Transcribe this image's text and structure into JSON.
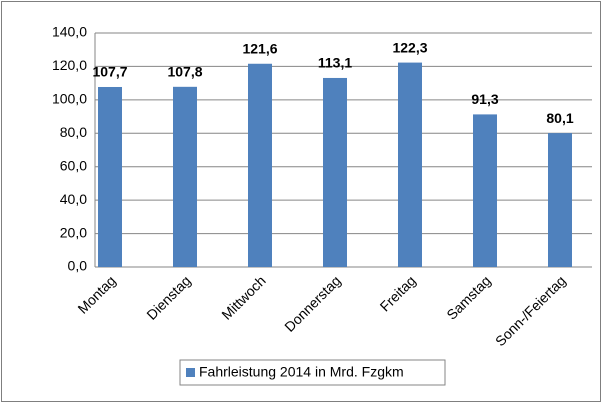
{
  "chart_data": {
    "type": "bar",
    "categories": [
      "Montag",
      "Dienstag",
      "Mittwoch",
      "Donnerstag",
      "Freitag",
      "Samstag",
      "Sonn-/Feiertag"
    ],
    "series": [
      {
        "name": "Fahrleistung 2014 in Mrd. Fzgkm",
        "color": "#4f81bd",
        "values": [
          107.7,
          107.8,
          121.6,
          113.1,
          122.3,
          91.3,
          80.1
        ],
        "value_labels": [
          "107,7",
          "107,8",
          "121,6",
          "113,1",
          "122,3",
          "91,3",
          "80,1"
        ]
      }
    ],
    "ylim": [
      0,
      140
    ],
    "yticks": [
      {
        "value": 0,
        "label": "0,0"
      },
      {
        "value": 20,
        "label": "20,0"
      },
      {
        "value": 40,
        "label": "40,0"
      },
      {
        "value": 60,
        "label": "60,0"
      },
      {
        "value": 80,
        "label": "80,0"
      },
      {
        "value": 100,
        "label": "100,0"
      },
      {
        "value": 120,
        "label": "120,0"
      },
      {
        "value": 140,
        "label": "140,0"
      }
    ],
    "grid": true,
    "legend": "bottom"
  }
}
